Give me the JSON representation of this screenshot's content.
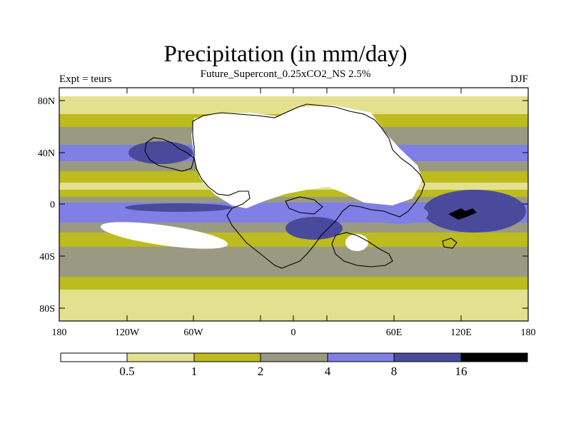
{
  "header": {
    "title": "Precipitation (in mm/day)",
    "subtitle": "Future_Supercont_0.25xCO2_NS 2.5%",
    "left_label": "Expt = teurs",
    "right_label": "DJF"
  },
  "map": {
    "variable": "precipitation",
    "units": "mm/day",
    "projection": "cylindrical-equidistant",
    "lon_range": [
      -180,
      180
    ],
    "lat_range": [
      -90,
      90
    ],
    "lon_ticks": [
      "180",
      "120W",
      "60W",
      "0",
      "60E",
      "120E",
      "180"
    ],
    "lat_ticks": [
      "80N",
      "40N",
      "0",
      "40S",
      "80S"
    ],
    "coastline_color": "#000000"
  },
  "colorbar": {
    "levels": [
      "0.5",
      "1",
      "2",
      "4",
      "8",
      "16"
    ],
    "colors": [
      "#ffffff",
      "#e3e190",
      "#bdbb1d",
      "#9a9a82",
      "#7f7fe6",
      "#4a4a9c",
      "#000000"
    ]
  }
}
